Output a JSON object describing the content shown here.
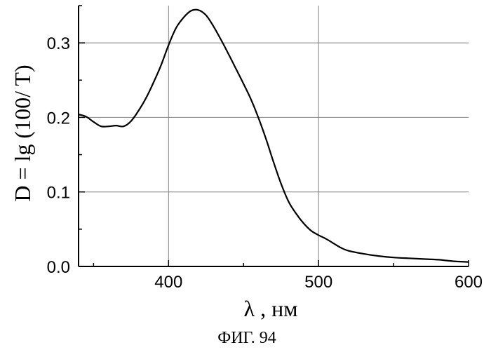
{
  "figure": {
    "caption": "ФИГ. 94"
  },
  "chart_data": {
    "type": "line",
    "xlabel": "λ , нм",
    "ylabel": "D = lg (100/ T)",
    "xlim": [
      340,
      600
    ],
    "ylim": [
      0.0,
      0.35
    ],
    "xticks": [
      400,
      500,
      600
    ],
    "xtick_labels": [
      "400",
      "500",
      "600"
    ],
    "yticks": [
      0.0,
      0.1,
      0.2,
      0.3
    ],
    "ytick_labels": [
      "0.0",
      "0.1",
      "0.2",
      "0.3"
    ],
    "grid": true,
    "colors": {
      "line": "#000000",
      "grid": "#808080",
      "axis": "#000000"
    },
    "series": [
      {
        "x": [
          340,
          345,
          350,
          355,
          360,
          365,
          370,
          375,
          380,
          385,
          390,
          395,
          400,
          405,
          410,
          415,
          420,
          425,
          430,
          435,
          440,
          445,
          450,
          455,
          460,
          465,
          470,
          475,
          480,
          485,
          490,
          495,
          500,
          505,
          510,
          515,
          520,
          530,
          540,
          550,
          560,
          570,
          580,
          590,
          600
        ],
        "y": [
          0.204,
          0.201,
          0.194,
          0.188,
          0.188,
          0.189,
          0.188,
          0.195,
          0.209,
          0.226,
          0.247,
          0.27,
          0.297,
          0.32,
          0.334,
          0.343,
          0.344,
          0.337,
          0.322,
          0.304,
          0.285,
          0.265,
          0.245,
          0.224,
          0.199,
          0.171,
          0.14,
          0.111,
          0.087,
          0.071,
          0.058,
          0.048,
          0.042,
          0.037,
          0.031,
          0.025,
          0.021,
          0.017,
          0.014,
          0.012,
          0.011,
          0.01,
          0.009,
          0.007,
          0.006
        ]
      }
    ]
  }
}
